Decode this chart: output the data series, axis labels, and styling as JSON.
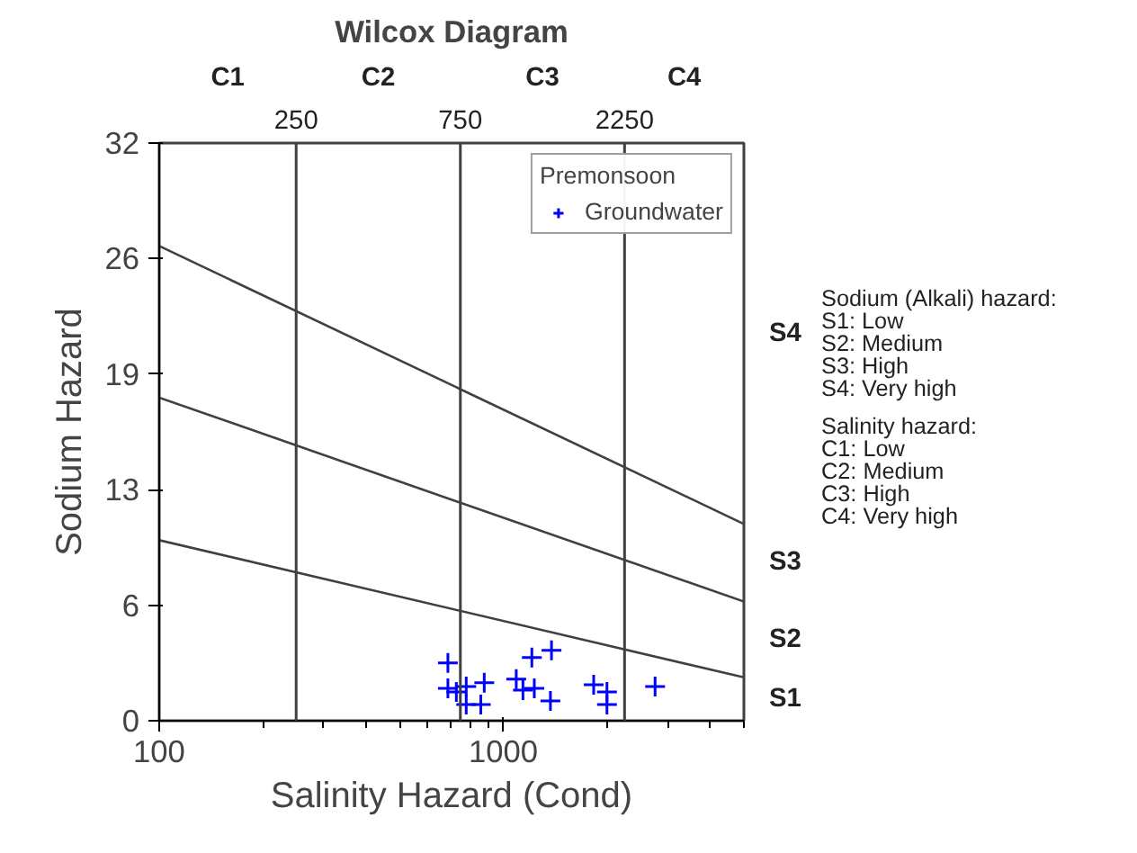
{
  "chart_data": {
    "type": "scatter",
    "title": "Wilcox Diagram",
    "xlabel": "Salinity Hazard (Cond)",
    "ylabel": "Sodium Hazard",
    "legend_title": "Premonsoon",
    "log": "x",
    "xlim": [
      100,
      5000
    ],
    "ylim": [
      0,
      32
    ],
    "xticks": [
      100,
      1000
    ],
    "yticks": [
      0,
      {
        "value": 6.4,
        "label": "6"
      },
      {
        "value": 12.8,
        "label": "13"
      },
      {
        "value": 19.2,
        "label": "19"
      },
      {
        "value": 25.6,
        "label": "26"
      },
      32
    ],
    "series": [
      {
        "type": "line",
        "color": "#404040",
        "x": [
          100,
          5000
        ],
        "values": [
          26.3,
          10.9
        ]
      },
      {
        "type": "line",
        "color": "#404040",
        "x": [
          100,
          5000
        ],
        "values": [
          17.9,
          6.6
        ]
      },
      {
        "type": "line",
        "color": "#404040",
        "x": [
          100,
          5000
        ],
        "values": [
          10.0,
          2.4
        ]
      },
      {
        "name": "Groundwater",
        "color": "#0000ff",
        "marker": "cross",
        "x": [
          690,
          690,
          730,
          780,
          780,
          880,
          860,
          1090,
          1140,
          1210,
          1230,
          1380,
          1370,
          1830,
          2000,
          2000,
          2760
        ],
        "values": [
          3.2,
          1.8,
          1.6,
          1.9,
          0.9,
          2.1,
          0.9,
          2.3,
          1.7,
          3.5,
          1.8,
          3.9,
          1.1,
          2.0,
          1.6,
          0.9,
          1.9
        ]
      }
    ],
    "legend": "top right",
    "grid": false,
    "ref_lines": [
      {
        "axis": "x",
        "value": 250,
        "label": "250",
        "color": "#404040"
      },
      {
        "axis": "x",
        "value": 750,
        "label": "750",
        "color": "#404040"
      },
      {
        "axis": "x",
        "value": 2250,
        "label": "2250",
        "color": "#404040"
      }
    ],
    "annotations": [
      "C1",
      "C2",
      "C3",
      "C4",
      "S1",
      "S2",
      "S3",
      "S4",
      "Sodium (Alkali) hazard:",
      "S1: Low",
      "S2: Medium",
      "S3: High",
      "S4: Very high",
      "Salinity hazard:",
      "C1: Low",
      "C2: Medium",
      "C3: High",
      "C4: Very high"
    ]
  }
}
